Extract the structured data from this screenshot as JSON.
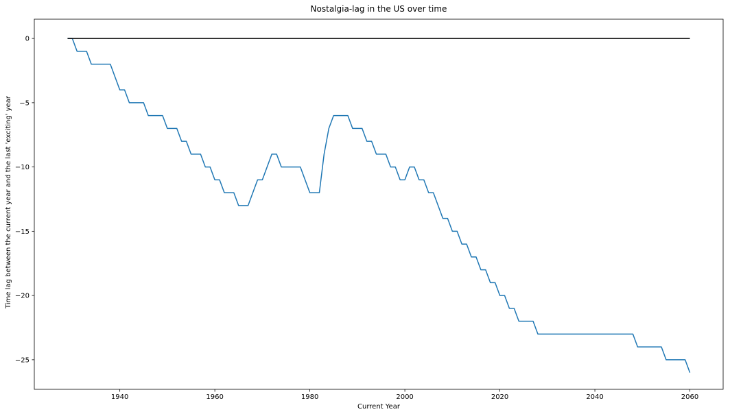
{
  "chart_data": {
    "type": "line",
    "title": "Nostalgia-lag in the US over time",
    "xlabel": "Current Year",
    "ylabel": "Time lag between the current year and the last 'exciting' year",
    "xlim": [
      1922,
      2067
    ],
    "ylim": [
      -27.3,
      1.5
    ],
    "x_ticks": [
      1940,
      1960,
      1980,
      2000,
      2020,
      2040,
      2060
    ],
    "y_ticks": [
      0,
      -5,
      -10,
      -15,
      -20,
      -25
    ],
    "grid": false,
    "legend": "none",
    "series": [
      {
        "color": "#1f77b4",
        "points": [
          [
            1929,
            0
          ],
          [
            1930,
            0
          ],
          [
            1931,
            -1
          ],
          [
            1933,
            -1
          ],
          [
            1934,
            -2
          ],
          [
            1938,
            -2
          ],
          [
            1940,
            -4
          ],
          [
            1941,
            -4
          ],
          [
            1942,
            -5
          ],
          [
            1945,
            -5
          ],
          [
            1946,
            -6
          ],
          [
            1949,
            -6
          ],
          [
            1950,
            -7
          ],
          [
            1952,
            -7
          ],
          [
            1953,
            -8
          ],
          [
            1954,
            -8
          ],
          [
            1955,
            -9
          ],
          [
            1957,
            -9
          ],
          [
            1958,
            -10
          ],
          [
            1959,
            -10
          ],
          [
            1960,
            -11
          ],
          [
            1961,
            -11
          ],
          [
            1962,
            -12
          ],
          [
            1964,
            -12
          ],
          [
            1965,
            -13
          ],
          [
            1967,
            -13
          ],
          [
            1969,
            -11
          ],
          [
            1970,
            -11
          ],
          [
            1972,
            -9
          ],
          [
            1973,
            -9
          ],
          [
            1974,
            -10
          ],
          [
            1978,
            -10
          ],
          [
            1980,
            -12
          ],
          [
            1982,
            -12
          ],
          [
            1983,
            -9
          ],
          [
            1984,
            -7
          ],
          [
            1985,
            -6
          ],
          [
            1988,
            -6
          ],
          [
            1989,
            -7
          ],
          [
            1991,
            -7
          ],
          [
            1992,
            -8
          ],
          [
            1993,
            -8
          ],
          [
            1994,
            -9
          ],
          [
            1996,
            -9
          ],
          [
            1997,
            -10
          ],
          [
            1998,
            -10
          ],
          [
            1999,
            -11
          ],
          [
            2000,
            -11
          ],
          [
            2001,
            -10
          ],
          [
            2002,
            -10
          ],
          [
            2003,
            -11
          ],
          [
            2004,
            -11
          ],
          [
            2005,
            -12
          ],
          [
            2006,
            -12
          ],
          [
            2008,
            -14
          ],
          [
            2009,
            -14
          ],
          [
            2010,
            -15
          ],
          [
            2011,
            -15
          ],
          [
            2012,
            -16
          ],
          [
            2013,
            -16
          ],
          [
            2014,
            -17
          ],
          [
            2015,
            -17
          ],
          [
            2016,
            -18
          ],
          [
            2017,
            -18
          ],
          [
            2018,
            -19
          ],
          [
            2019,
            -19
          ],
          [
            2020,
            -20
          ],
          [
            2021,
            -20
          ],
          [
            2022,
            -21
          ],
          [
            2023,
            -21
          ],
          [
            2024,
            -22
          ],
          [
            2027,
            -22
          ],
          [
            2028,
            -23
          ],
          [
            2048,
            -23
          ],
          [
            2049,
            -24
          ],
          [
            2054,
            -24
          ],
          [
            2055,
            -25
          ],
          [
            2059,
            -25
          ],
          [
            2060,
            -26
          ]
        ]
      },
      {
        "color": "#000000",
        "points": [
          [
            1929,
            0
          ],
          [
            2060,
            0
          ]
        ]
      }
    ]
  }
}
